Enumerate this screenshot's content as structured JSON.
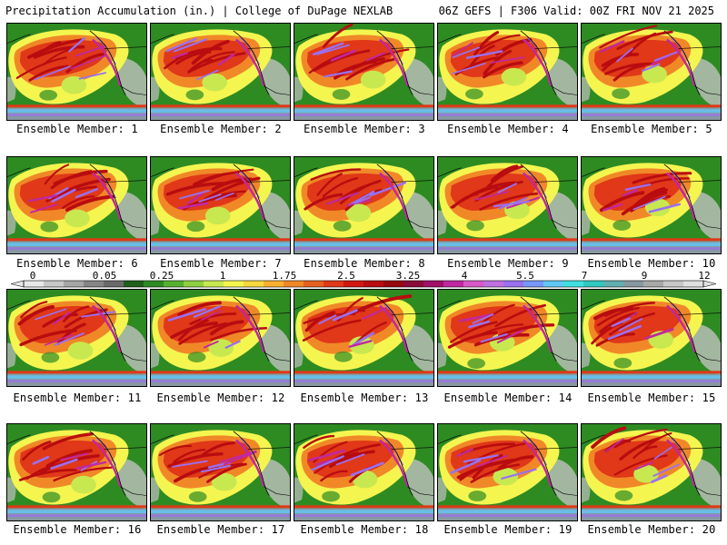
{
  "header": {
    "left": "Precipitation Accumulation (in.) | College of DuPage NEXLAB",
    "right": "06Z GEFS | F306 Valid: 00Z FRI NOV 21 2025"
  },
  "panels": [
    {
      "label": "Ensemble Member: 1"
    },
    {
      "label": "Ensemble Member: 2"
    },
    {
      "label": "Ensemble Member: 3"
    },
    {
      "label": "Ensemble Member: 4"
    },
    {
      "label": "Ensemble Member: 5"
    },
    {
      "label": "Ensemble Member: 6"
    },
    {
      "label": "Ensemble Member: 7"
    },
    {
      "label": "Ensemble Member: 8"
    },
    {
      "label": "Ensemble Member: 9"
    },
    {
      "label": "Ensemble Member: 10"
    },
    {
      "label": "Ensemble Member: 11"
    },
    {
      "label": "Ensemble Member: 12"
    },
    {
      "label": "Ensemble Member: 13"
    },
    {
      "label": "Ensemble Member: 14"
    },
    {
      "label": "Ensemble Member: 15"
    },
    {
      "label": "Ensemble Member: 16"
    },
    {
      "label": "Ensemble Member: 17"
    },
    {
      "label": "Ensemble Member: 18"
    },
    {
      "label": "Ensemble Member: 19"
    },
    {
      "label": "Ensemble Member: 20"
    }
  ],
  "legend": {
    "tick_labels": [
      "0",
      "0.05",
      "0.25",
      "1",
      "1.75",
      "2.5",
      "3.25",
      "4",
      "5.5",
      "7",
      "9",
      "12"
    ],
    "colors": [
      "#e8e8e8",
      "#c8c8c8",
      "#a6a6a6",
      "#858585",
      "#6a6a6a",
      "#1f5f1a",
      "#2e8b22",
      "#55b030",
      "#8fd040",
      "#c8e850",
      "#f5f550",
      "#f8d840",
      "#f8b030",
      "#f08828",
      "#e86020",
      "#e03818",
      "#d01810",
      "#b80c10",
      "#980810",
      "#8a0a3a",
      "#a01068",
      "#c028a0",
      "#d858c8",
      "#c070e0",
      "#9a70f0",
      "#7898f8",
      "#60c8f8",
      "#40e0e0",
      "#30c8c0",
      "#60b0b0",
      "#8898a0",
      "#a8a8a8",
      "#c8c8c8",
      "#e0e0e0"
    ]
  },
  "palette": {
    "land": "#2e8b22",
    "dry": "#c0c0c0",
    "light": "#c8e850",
    "moderate": "#f5f550",
    "heavy": "#f08828",
    "very_heavy": "#e03818",
    "extreme": "#b80c10",
    "magenta": "#c028a0",
    "blue": "#9a70f0",
    "cyan": "#60c8f8",
    "grey": "#8898a0"
  }
}
